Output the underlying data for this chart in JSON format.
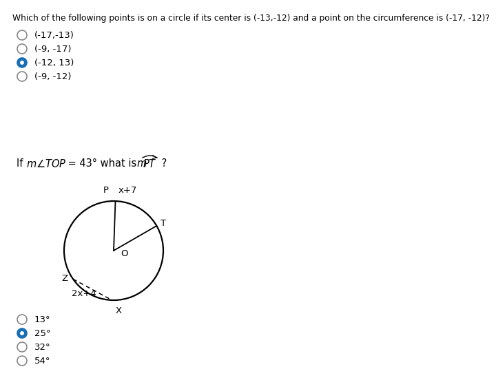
{
  "title1": "Which of the following points is on a circle if its center is (-13,-12) and a point on the circumference is (-17, -12)?",
  "q1_options": [
    "(-17,-13)",
    "(-9, -17)",
    "(-12, 13)",
    "(-9, -12)"
  ],
  "q1_selected": 2,
  "q2_options": [
    "13°",
    "25°",
    "32°",
    "54°"
  ],
  "q2_selected": 1,
  "bg_color": "#ffffff",
  "text_color": "#000000",
  "radio_border_color": "#888888",
  "radio_selected_color": "#1a6fb5",
  "font_size_title": 8.8,
  "font_size_option": 9.5,
  "font_size_q2_label": 10.5,
  "font_size_diagram": 9.5
}
